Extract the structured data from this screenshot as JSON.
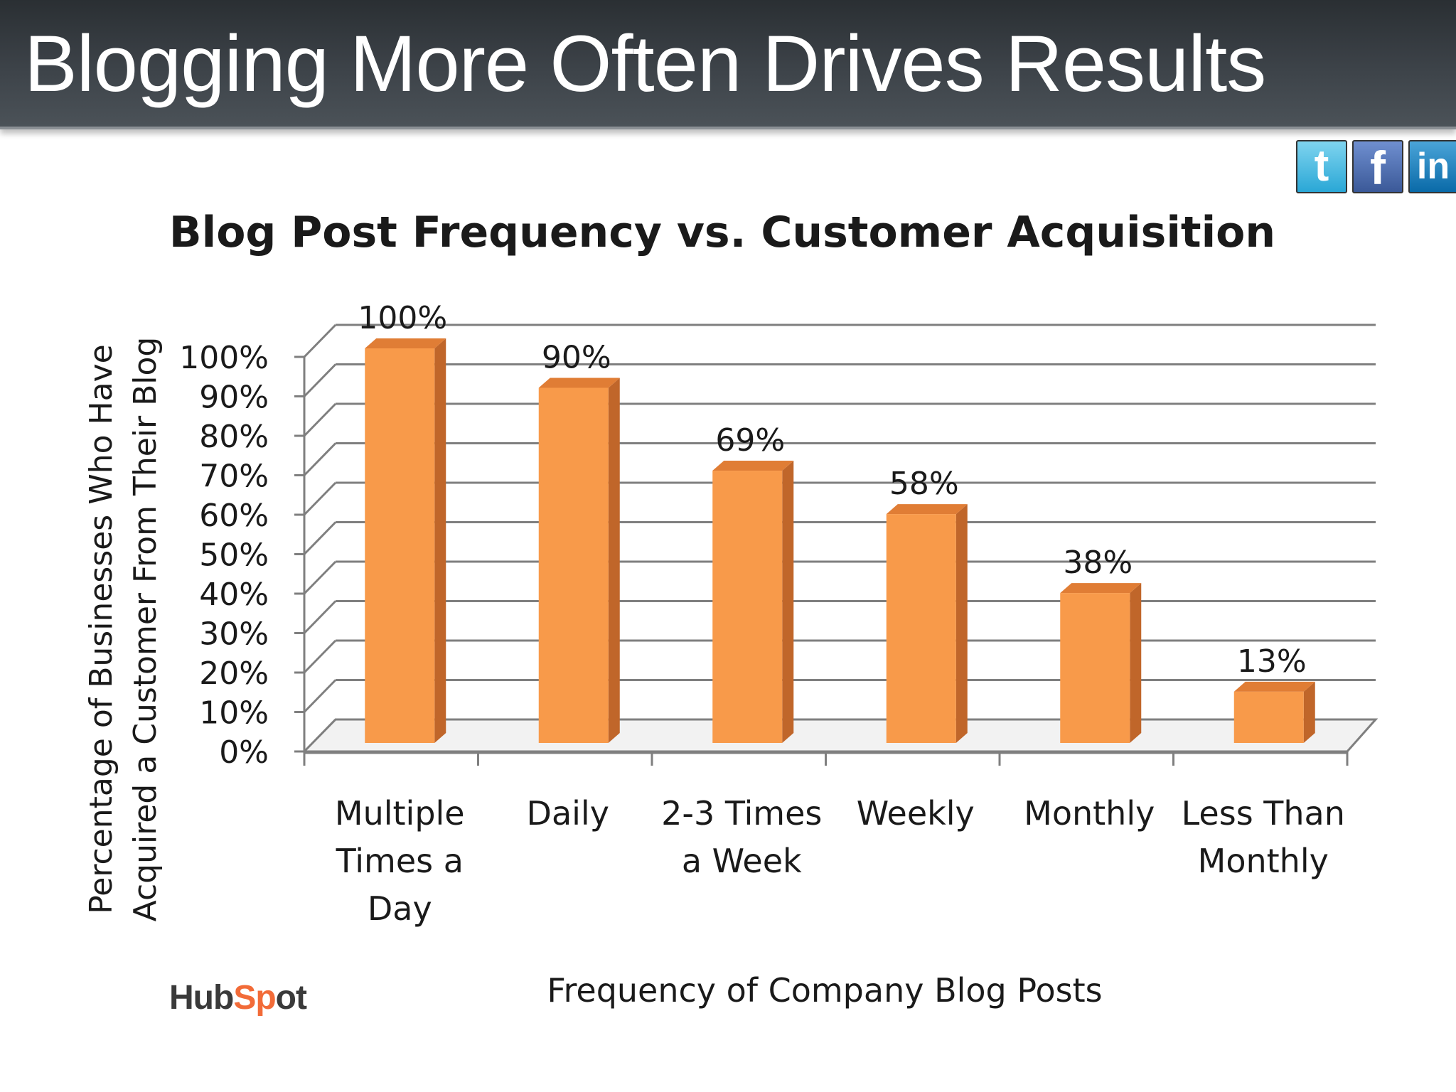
{
  "slide": {
    "title": "Blogging More Often Drives Results"
  },
  "social": {
    "twitter_icon": "twitter-icon",
    "twitter_glyph": "t",
    "facebook_icon": "facebook-icon",
    "facebook_glyph": "f",
    "linkedin_icon": "linkedin-icon",
    "linkedin_glyph": "in"
  },
  "brand": {
    "logo_text": "HubSpot",
    "accent": "#f26b38"
  },
  "colors": {
    "bar_front": "#f89a4a",
    "bar_side": "#c0662a",
    "bar_top": "#e07d35",
    "grid": "#7f7f7f",
    "title_bar": "#3d4349"
  },
  "chart_data": {
    "type": "bar",
    "title": "Blog Post Frequency vs. Customer Acquisition",
    "xlabel": "Frequency of Company Blog Posts",
    "ylabel": "Percentage of Businesses Who Have Acquired a Customer From Their Blog",
    "categories": [
      "Multiple Times a Day",
      "Daily",
      "2-3 Times a Week",
      "Weekly",
      "Monthly",
      "Less Than Monthly"
    ],
    "category_lines": [
      [
        "Multiple",
        "Times a",
        "Day"
      ],
      [
        "Daily"
      ],
      [
        "2-3 Times",
        "a Week"
      ],
      [
        "Weekly"
      ],
      [
        "Monthly"
      ],
      [
        "Less Than",
        "Monthly"
      ]
    ],
    "values": [
      100,
      90,
      69,
      58,
      38,
      13
    ],
    "data_labels": [
      "100%",
      "90%",
      "69%",
      "58%",
      "38%",
      "13%"
    ],
    "ylim": [
      0,
      100
    ],
    "yticks": [
      "0%",
      "10%",
      "20%",
      "30%",
      "40%",
      "50%",
      "60%",
      "70%",
      "80%",
      "90%",
      "100%"
    ],
    "grid": true,
    "style": "3d-column",
    "legend": "none"
  }
}
